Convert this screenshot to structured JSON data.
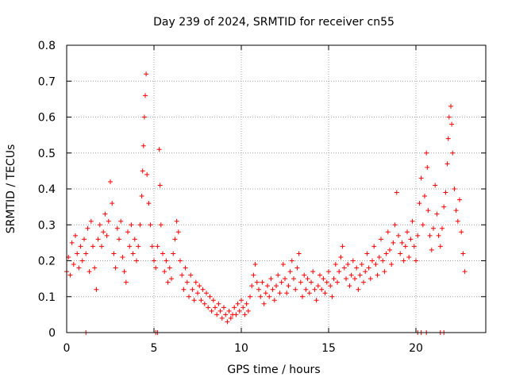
{
  "chart_data": {
    "type": "scatter",
    "title": "Day 239 of 2024, SRMTID for receiver cn55",
    "xlabel": "GPS time / hours",
    "ylabel": "SRMTID / TECUs",
    "xlim": [
      0,
      24
    ],
    "ylim": [
      0,
      0.8
    ],
    "xticks": [
      0,
      5,
      10,
      15,
      20
    ],
    "xtick_labels": [
      "0",
      "5",
      "10",
      "15",
      "20"
    ],
    "yticks": [
      0,
      0.1,
      0.2,
      0.3,
      0.4,
      0.5,
      0.6,
      0.7,
      0.8
    ],
    "ytick_labels": [
      "0",
      "0.1",
      "0.2",
      "0.3",
      "0.4",
      "0.5",
      "0.6",
      "0.7",
      "0.8"
    ],
    "grid": true,
    "marker": "+",
    "color": "#ff0000",
    "series": [
      {
        "name": "SRMTID",
        "points": [
          [
            0.0,
            0.17
          ],
          [
            0.1,
            0.21
          ],
          [
            0.2,
            0.16
          ],
          [
            0.3,
            0.25
          ],
          [
            0.4,
            0.19
          ],
          [
            0.5,
            0.27
          ],
          [
            0.6,
            0.22
          ],
          [
            0.7,
            0.18
          ],
          [
            0.8,
            0.24
          ],
          [
            0.9,
            0.2
          ],
          [
            1.0,
            0.26
          ],
          [
            1.1,
            0.22
          ],
          [
            1.2,
            0.29
          ],
          [
            1.3,
            0.17
          ],
          [
            1.4,
            0.31
          ],
          [
            1.5,
            0.24
          ],
          [
            1.6,
            0.18
          ],
          [
            1.7,
            0.12
          ],
          [
            1.8,
            0.26
          ],
          [
            1.9,
            0.3
          ],
          [
            2.0,
            0.24
          ],
          [
            2.1,
            0.28
          ],
          [
            2.2,
            0.33
          ],
          [
            2.3,
            0.27
          ],
          [
            2.4,
            0.31
          ],
          [
            2.5,
            0.42
          ],
          [
            2.6,
            0.36
          ],
          [
            2.7,
            0.22
          ],
          [
            2.8,
            0.18
          ],
          [
            2.9,
            0.29
          ],
          [
            3.0,
            0.26
          ],
          [
            3.1,
            0.31
          ],
          [
            3.2,
            0.21
          ],
          [
            3.3,
            0.17
          ],
          [
            3.4,
            0.14
          ],
          [
            3.5,
            0.28
          ],
          [
            3.6,
            0.24
          ],
          [
            3.7,
            0.3
          ],
          [
            3.8,
            0.22
          ],
          [
            3.9,
            0.26
          ],
          [
            4.0,
            0.2
          ],
          [
            4.1,
            0.24
          ],
          [
            4.2,
            0.3
          ],
          [
            4.3,
            0.38
          ],
          [
            4.35,
            0.45
          ],
          [
            4.4,
            0.52
          ],
          [
            4.45,
            0.6
          ],
          [
            4.5,
            0.66
          ],
          [
            4.55,
            0.72
          ],
          [
            4.6,
            0.44
          ],
          [
            4.7,
            0.36
          ],
          [
            4.8,
            0.3
          ],
          [
            4.9,
            0.24
          ],
          [
            5.0,
            0.2
          ],
          [
            5.1,
            0.18
          ],
          [
            5.2,
            0.24
          ],
          [
            5.3,
            0.51
          ],
          [
            5.35,
            0.41
          ],
          [
            5.4,
            0.3
          ],
          [
            5.5,
            0.22
          ],
          [
            5.6,
            0.17
          ],
          [
            5.7,
            0.2
          ],
          [
            5.8,
            0.14
          ],
          [
            5.9,
            0.18
          ],
          [
            6.0,
            0.15
          ],
          [
            6.1,
            0.22
          ],
          [
            6.2,
            0.26
          ],
          [
            6.3,
            0.31
          ],
          [
            6.4,
            0.28
          ],
          [
            6.5,
            0.2
          ],
          [
            6.6,
            0.16
          ],
          [
            6.7,
            0.12
          ],
          [
            6.8,
            0.18
          ],
          [
            6.9,
            0.14
          ],
          [
            7.0,
            0.1
          ],
          [
            7.1,
            0.16
          ],
          [
            7.2,
            0.12
          ],
          [
            7.3,
            0.09
          ],
          [
            7.4,
            0.14
          ],
          [
            7.5,
            0.11
          ],
          [
            7.6,
            0.13
          ],
          [
            7.7,
            0.09
          ],
          [
            7.8,
            0.12
          ],
          [
            7.9,
            0.08
          ],
          [
            8.0,
            0.11
          ],
          [
            8.1,
            0.07
          ],
          [
            8.2,
            0.1
          ],
          [
            8.3,
            0.06
          ],
          [
            8.4,
            0.09
          ],
          [
            8.5,
            0.07
          ],
          [
            8.6,
            0.05
          ],
          [
            8.7,
            0.08
          ],
          [
            8.8,
            0.06
          ],
          [
            8.9,
            0.04
          ],
          [
            9.0,
            0.07
          ],
          [
            9.1,
            0.05
          ],
          [
            9.2,
            0.03
          ],
          [
            9.3,
            0.06
          ],
          [
            9.4,
            0.04
          ],
          [
            9.5,
            0.05
          ],
          [
            9.6,
            0.07
          ],
          [
            9.7,
            0.05
          ],
          [
            9.8,
            0.08
          ],
          [
            9.9,
            0.06
          ],
          [
            10.0,
            0.09
          ],
          [
            10.1,
            0.07
          ],
          [
            10.2,
            0.05
          ],
          [
            10.3,
            0.08
          ],
          [
            10.4,
            0.06
          ],
          [
            10.5,
            0.1
          ],
          [
            10.6,
            0.13
          ],
          [
            10.7,
            0.16
          ],
          [
            10.8,
            0.19
          ],
          [
            10.9,
            0.14
          ],
          [
            11.0,
            0.12
          ],
          [
            11.1,
            0.1
          ],
          [
            11.2,
            0.14
          ],
          [
            11.3,
            0.08
          ],
          [
            11.4,
            0.11
          ],
          [
            11.5,
            0.13
          ],
          [
            11.6,
            0.1
          ],
          [
            11.7,
            0.15
          ],
          [
            11.8,
            0.12
          ],
          [
            11.9,
            0.09
          ],
          [
            12.0,
            0.13
          ],
          [
            12.1,
            0.16
          ],
          [
            12.2,
            0.11
          ],
          [
            12.3,
            0.14
          ],
          [
            12.4,
            0.19
          ],
          [
            12.5,
            0.15
          ],
          [
            12.6,
            0.11
          ],
          [
            12.7,
            0.13
          ],
          [
            12.8,
            0.17
          ],
          [
            12.9,
            0.2
          ],
          [
            13.0,
            0.15
          ],
          [
            13.1,
            0.12
          ],
          [
            13.2,
            0.18
          ],
          [
            13.3,
            0.22
          ],
          [
            13.4,
            0.14
          ],
          [
            13.5,
            0.1
          ],
          [
            13.6,
            0.16
          ],
          [
            13.7,
            0.12
          ],
          [
            13.8,
            0.15
          ],
          [
            13.9,
            0.11
          ],
          [
            14.0,
            0.14
          ],
          [
            14.1,
            0.17
          ],
          [
            14.2,
            0.12
          ],
          [
            14.3,
            0.09
          ],
          [
            14.4,
            0.13
          ],
          [
            14.5,
            0.16
          ],
          [
            14.6,
            0.12
          ],
          [
            14.7,
            0.15
          ],
          [
            14.8,
            0.11
          ],
          [
            14.9,
            0.14
          ],
          [
            15.0,
            0.17
          ],
          [
            15.1,
            0.13
          ],
          [
            15.2,
            0.1
          ],
          [
            15.3,
            0.15
          ],
          [
            15.4,
            0.19
          ],
          [
            15.5,
            0.14
          ],
          [
            15.6,
            0.17
          ],
          [
            15.7,
            0.21
          ],
          [
            15.8,
            0.24
          ],
          [
            15.9,
            0.18
          ],
          [
            16.0,
            0.15
          ],
          [
            16.1,
            0.19
          ],
          [
            16.2,
            0.13
          ],
          [
            16.3,
            0.16
          ],
          [
            16.4,
            0.2
          ],
          [
            16.5,
            0.15
          ],
          [
            16.6,
            0.18
          ],
          [
            16.7,
            0.12
          ],
          [
            16.8,
            0.16
          ],
          [
            16.9,
            0.19
          ],
          [
            17.0,
            0.14
          ],
          [
            17.1,
            0.17
          ],
          [
            17.2,
            0.22
          ],
          [
            17.3,
            0.18
          ],
          [
            17.4,
            0.15
          ],
          [
            17.5,
            0.2
          ],
          [
            17.6,
            0.24
          ],
          [
            17.7,
            0.19
          ],
          [
            17.8,
            0.16
          ],
          [
            17.9,
            0.21
          ],
          [
            18.0,
            0.26
          ],
          [
            18.1,
            0.2
          ],
          [
            18.2,
            0.17
          ],
          [
            18.3,
            0.22
          ],
          [
            18.4,
            0.28
          ],
          [
            18.5,
            0.23
          ],
          [
            18.6,
            0.19
          ],
          [
            18.7,
            0.25
          ],
          [
            18.8,
            0.3
          ],
          [
            18.9,
            0.39
          ],
          [
            19.0,
            0.27
          ],
          [
            19.1,
            0.22
          ],
          [
            19.2,
            0.25
          ],
          [
            19.3,
            0.2
          ],
          [
            19.4,
            0.24
          ],
          [
            19.5,
            0.28
          ],
          [
            19.6,
            0.21
          ],
          [
            19.7,
            0.26
          ],
          [
            19.8,
            0.31
          ],
          [
            19.9,
            0.24
          ],
          [
            20.0,
            0.2
          ],
          [
            20.1,
            0.27
          ],
          [
            20.2,
            0.36
          ],
          [
            20.3,
            0.43
          ],
          [
            20.4,
            0.3
          ],
          [
            20.5,
            0.38
          ],
          [
            20.6,
            0.5
          ],
          [
            20.65,
            0.46
          ],
          [
            20.7,
            0.34
          ],
          [
            20.8,
            0.27
          ],
          [
            20.9,
            0.23
          ],
          [
            21.0,
            0.29
          ],
          [
            21.1,
            0.41
          ],
          [
            21.2,
            0.33
          ],
          [
            21.3,
            0.27
          ],
          [
            21.4,
            0.24
          ],
          [
            21.5,
            0.29
          ],
          [
            21.6,
            0.35
          ],
          [
            21.7,
            0.39
          ],
          [
            21.8,
            0.47
          ],
          [
            21.85,
            0.54
          ],
          [
            21.9,
            0.6
          ],
          [
            22.0,
            0.63
          ],
          [
            22.05,
            0.58
          ],
          [
            22.1,
            0.5
          ],
          [
            22.2,
            0.4
          ],
          [
            22.3,
            0.34
          ],
          [
            22.4,
            0.31
          ],
          [
            22.5,
            0.37
          ],
          [
            22.6,
            0.28
          ],
          [
            22.7,
            0.22
          ],
          [
            22.8,
            0.17
          ],
          [
            1.1,
            0.0
          ],
          [
            5.1,
            0.0
          ],
          [
            5.2,
            0.0
          ],
          [
            20.1,
            0.0
          ],
          [
            20.3,
            0.0
          ],
          [
            20.6,
            0.0
          ],
          [
            21.4,
            0.0
          ],
          [
            21.6,
            0.0
          ]
        ]
      }
    ]
  }
}
